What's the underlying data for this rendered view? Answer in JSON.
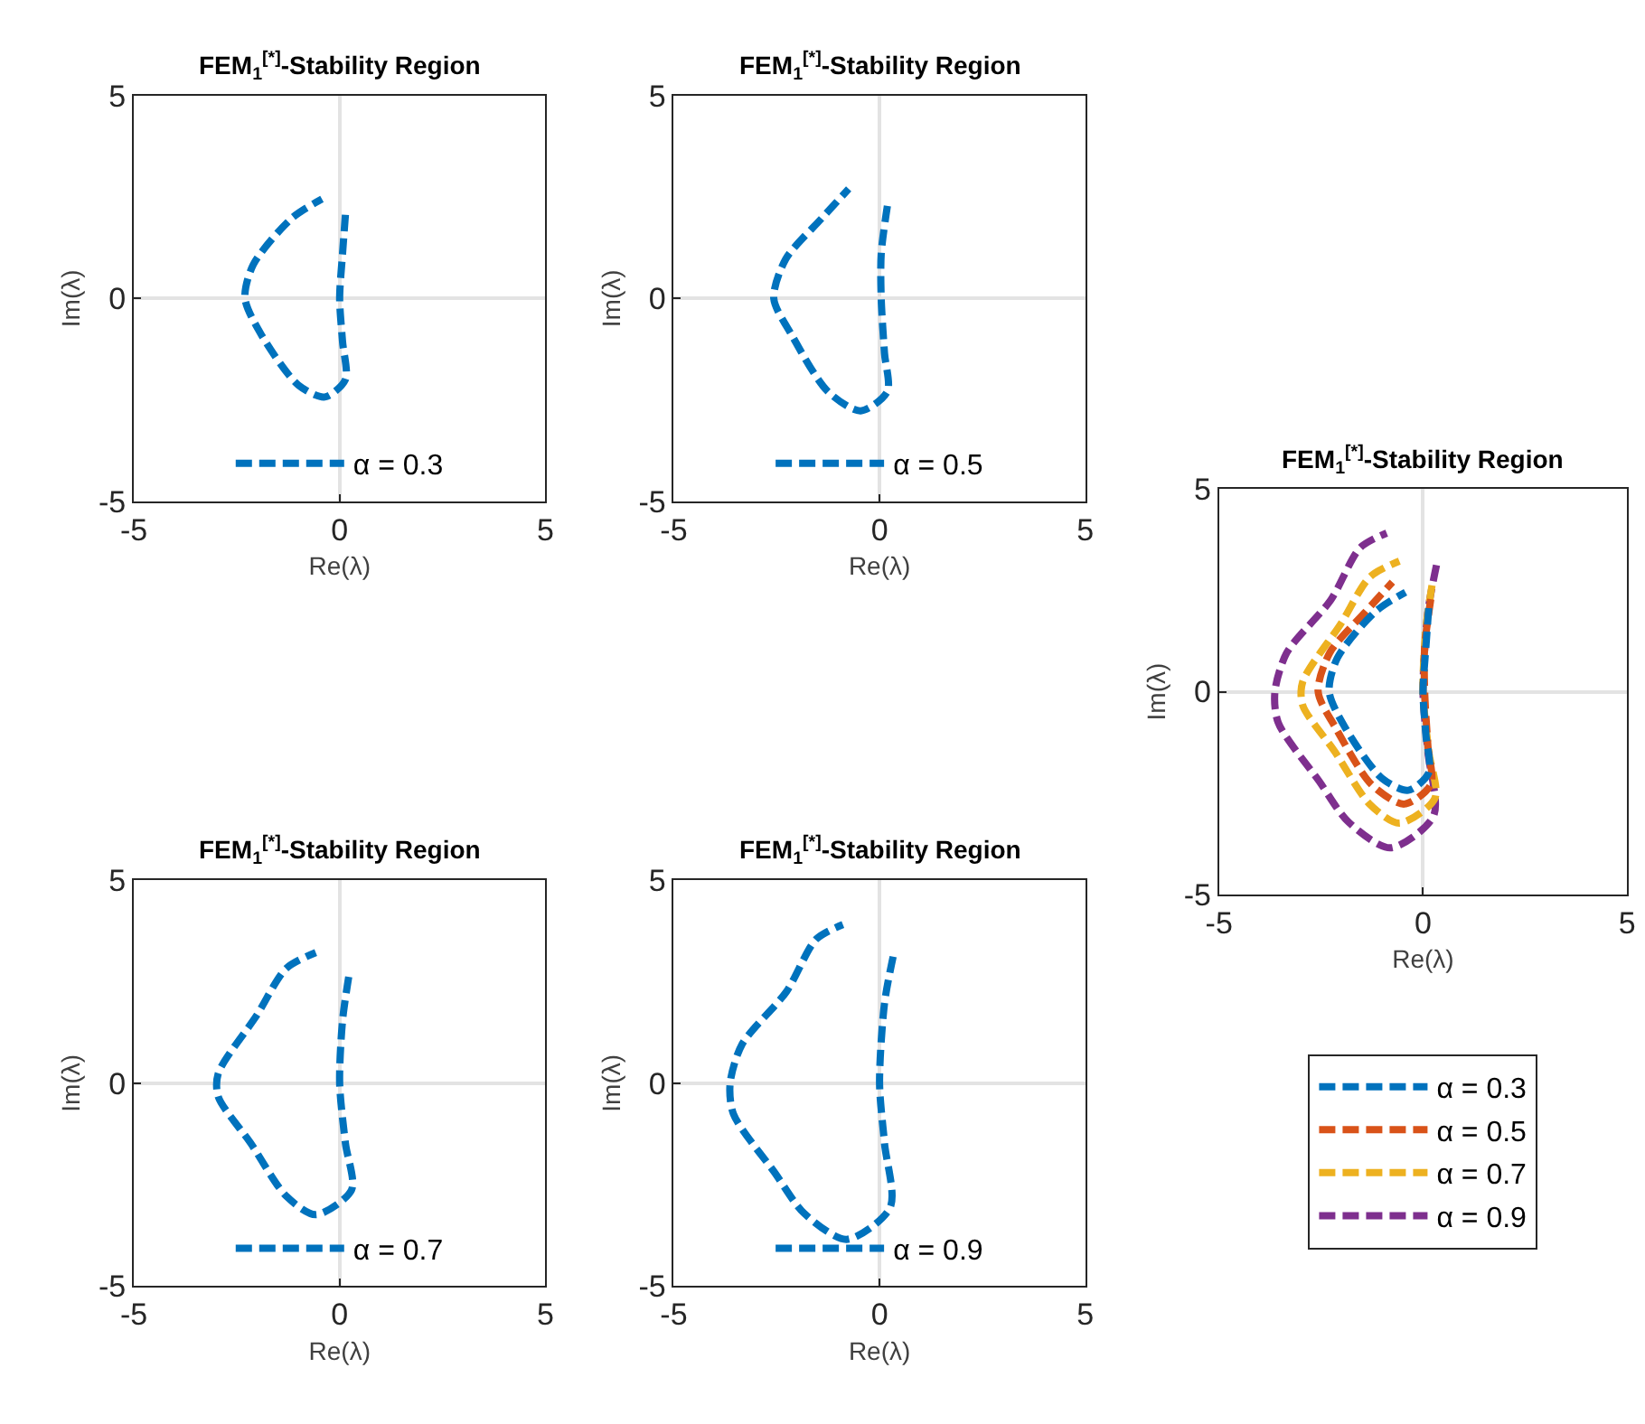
{
  "chart_data": [
    {
      "type": "line",
      "title": "FEM$_{1}$$^{[*]}$-Stability Region",
      "xlabel": "Re(λ)",
      "ylabel": "Im(λ)",
      "xlim": [
        -5,
        5
      ],
      "ylim": [
        -5,
        5
      ],
      "xticks": [
        -5,
        0,
        5
      ],
      "yticks": [
        -5,
        0,
        5
      ],
      "grid": true,
      "legend": "bottom",
      "line_style": "dashed",
      "marker": "none",
      "series": [
        {
          "name": "α = 0.3",
          "color": "#0072bd",
          "x": [
            0.14,
            0.07,
            0,
            0.07,
            0.14,
            -0.36,
            -1.0,
            -1.9,
            -2.3,
            -2.1,
            -1.16,
            -0.43
          ],
          "values": [
            2.06,
            1.1,
            0,
            -1.06,
            -2.0,
            -2.43,
            -2.14,
            -0.9,
            0,
            0.83,
            1.98,
            2.45
          ]
        }
      ]
    },
    {
      "type": "line",
      "title": "FEM$_{1}$$^{[*]}$-Stability Region",
      "xlabel": "Re(λ)",
      "ylabel": "Im(λ)",
      "xlim": [
        -5,
        5
      ],
      "ylim": [
        -5,
        5
      ],
      "xticks": [
        -5,
        0,
        5
      ],
      "yticks": [
        -5,
        0,
        5
      ],
      "grid": true,
      "legend": "bottom",
      "line_style": "dashed",
      "marker": "none",
      "series": [
        {
          "name": "α = 0.5",
          "color": "#0072bd",
          "x": [
            0.19,
            0.04,
            0.04,
            0.12,
            0.19,
            -0.46,
            -1.26,
            -2.13,
            -2.57,
            -2.28,
            -1.4,
            -0.75
          ],
          "values": [
            2.28,
            1.1,
            0,
            -1.35,
            -2.29,
            -2.77,
            -2.29,
            -0.91,
            0,
            0.97,
            1.98,
            2.7
          ]
        }
      ]
    },
    {
      "type": "line",
      "title": "FEM$_{1}$$^{[*]}$-Stability Region",
      "xlabel": "Re(λ)",
      "ylabel": "Im(λ)",
      "xlim": [
        -5,
        5
      ],
      "ylim": [
        -5,
        5
      ],
      "xticks": [
        -5,
        0,
        5
      ],
      "yticks": [
        -5,
        0,
        5
      ],
      "grid": true,
      "legend": "bottom",
      "line_style": "dashed",
      "marker": "none",
      "series": [
        {
          "name": "α = 0.7",
          "color": "#0072bd",
          "x": [
            0.22,
            0.07,
            0,
            0.14,
            0.29,
            -0.58,
            -1.3,
            -2.16,
            -2.95,
            -2.95,
            -2.01,
            -1.3,
            -0.58
          ],
          "values": [
            2.62,
            1.54,
            0,
            -1.48,
            -2.63,
            -3.24,
            -2.78,
            -1.48,
            -0.33,
            0.24,
            1.68,
            2.83,
            3.22
          ]
        }
      ]
    },
    {
      "type": "line",
      "title": "FEM$_{1}$$^{[*]}$-Stability Region",
      "xlabel": "Re(λ)",
      "ylabel": "Im(λ)",
      "xlim": [
        -5,
        5
      ],
      "ylim": [
        -5,
        5
      ],
      "xticks": [
        -5,
        0,
        5
      ],
      "yticks": [
        -5,
        0,
        5
      ],
      "grid": true,
      "legend": "bottom",
      "line_style": "dashed",
      "marker": "none",
      "series": [
        {
          "name": "α = 0.9",
          "color": "#0072bd",
          "x": [
            0.33,
            0.12,
            0,
            0.12,
            0.26,
            -0.8,
            -1.83,
            -2.55,
            -3.55,
            -3.63,
            -3.34,
            -2.26,
            -1.54,
            -0.89
          ],
          "values": [
            3.12,
            1.97,
            0,
            -1.48,
            -3.06,
            -3.85,
            -3.21,
            -2.2,
            -0.76,
            0,
            0.96,
            2.26,
            3.55,
            3.91
          ]
        }
      ]
    },
    {
      "type": "line",
      "title": "FEM$_{1}$$^{[*]}$-Stability Region",
      "xlabel": "Re(λ)",
      "ylabel": "Im(λ)",
      "xlim": [
        -5,
        5
      ],
      "ylim": [
        -5,
        5
      ],
      "xticks": [
        -5,
        0,
        5
      ],
      "yticks": [
        -5,
        0,
        5
      ],
      "grid": true,
      "legend": "bottom",
      "line_style": "dashed",
      "marker": "none",
      "series": [
        {
          "name": "α = 0.3",
          "color": "#0072bd",
          "x": [
            0.14,
            0.07,
            0,
            0.07,
            0.14,
            -0.36,
            -1.0,
            -1.9,
            -2.3,
            -2.1,
            -1.16,
            -0.43
          ],
          "values": [
            2.06,
            1.1,
            0,
            -1.06,
            -2.0,
            -2.43,
            -2.14,
            -0.9,
            0,
            0.83,
            1.98,
            2.45
          ]
        },
        {
          "name": "α = 0.5",
          "color": "#d95319",
          "x": [
            0.19,
            0.04,
            0.04,
            0.12,
            0.19,
            -0.46,
            -1.26,
            -2.13,
            -2.57,
            -2.28,
            -1.4,
            -0.75
          ],
          "values": [
            2.28,
            1.1,
            0,
            -1.35,
            -2.29,
            -2.77,
            -2.29,
            -0.91,
            0,
            0.97,
            1.98,
            2.7
          ]
        },
        {
          "name": "α = 0.7",
          "color": "#edb120",
          "x": [
            0.22,
            0.07,
            0,
            0.14,
            0.29,
            -0.58,
            -1.3,
            -2.16,
            -2.95,
            -2.95,
            -2.01,
            -1.3,
            -0.58
          ],
          "values": [
            2.62,
            1.54,
            0,
            -1.48,
            -2.63,
            -3.24,
            -2.78,
            -1.48,
            -0.33,
            0.24,
            1.68,
            2.83,
            3.22
          ]
        },
        {
          "name": "α = 0.9",
          "color": "#7e2f8e",
          "x": [
            0.33,
            0.12,
            0,
            0.12,
            0.26,
            -0.8,
            -1.83,
            -2.55,
            -3.55,
            -3.63,
            -3.34,
            -2.26,
            -1.54,
            -0.89
          ],
          "values": [
            3.12,
            1.97,
            0,
            -1.48,
            -3.06,
            -3.85,
            -3.21,
            -2.2,
            -0.76,
            0,
            0.96,
            2.26,
            3.55,
            3.91
          ]
        }
      ]
    }
  ]
}
